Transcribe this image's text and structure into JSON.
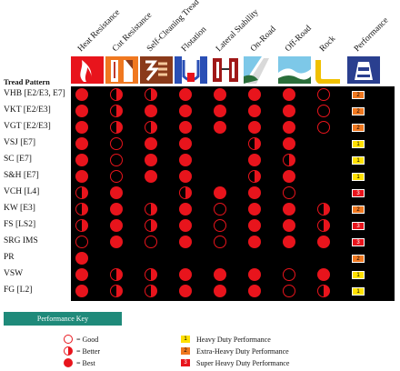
{
  "header": {
    "tread_pattern_label": "Tread Pattern",
    "columns": [
      "Heat Resistance",
      "Cut Resistance",
      "Self-Cleaning Tread",
      "Flotation",
      "Lateral Stability",
      "On-Road",
      "Off-Road",
      "Rock",
      "Performance"
    ]
  },
  "colors": {
    "best": "#e8141c",
    "heavy": "#ffe000",
    "extra_heavy": "#f07820",
    "super_heavy": "#e8141c",
    "key_bar": "#1f8a7a"
  },
  "icons": [
    "heat-icon",
    "cut-icon",
    "self-cleaning-icon",
    "flotation-icon",
    "lateral-stability-icon",
    "on-road-icon",
    "off-road-icon",
    "rock-icon",
    "performance-icon"
  ],
  "rows": [
    {
      "label": "VHB [E2/E3, E7]",
      "ratings": [
        "best",
        "better",
        "better",
        "best",
        "best",
        "best",
        "best",
        "good"
      ],
      "perf": "2"
    },
    {
      "label": "VKT [E2/E3]",
      "ratings": [
        "best",
        "better",
        "best",
        "best",
        "best",
        "best",
        "best",
        "good"
      ],
      "perf": "2"
    },
    {
      "label": "VGT [E2/E3]",
      "ratings": [
        "best",
        "better",
        "better",
        "best",
        "best",
        "best",
        "best",
        "good"
      ],
      "perf": "2"
    },
    {
      "label": "VSJ [E7]",
      "ratings": [
        "best",
        "good",
        "best",
        "best",
        "",
        "better",
        "best",
        ""
      ],
      "perf": "1"
    },
    {
      "label": "SC [E7]",
      "ratings": [
        "best",
        "good",
        "best",
        "best",
        "",
        "best",
        "better",
        ""
      ],
      "perf": "1"
    },
    {
      "label": "S&H [E7]",
      "ratings": [
        "best",
        "good",
        "best",
        "best",
        "",
        "better",
        "best",
        ""
      ],
      "perf": "1"
    },
    {
      "label": "VCH [L4]",
      "ratings": [
        "better",
        "best",
        "",
        "better",
        "best",
        "best",
        "good",
        ""
      ],
      "perf": "3"
    },
    {
      "label": "KW [E3]",
      "ratings": [
        "better",
        "best",
        "better",
        "best",
        "good",
        "best",
        "best",
        "better"
      ],
      "perf": "2"
    },
    {
      "label": "FS [LS2]",
      "ratings": [
        "better",
        "best",
        "better",
        "best",
        "good",
        "best",
        "best",
        "better"
      ],
      "perf": "3"
    },
    {
      "label": "SRG IMS",
      "ratings": [
        "good",
        "best",
        "good",
        "best",
        "good",
        "best",
        "best",
        "best"
      ],
      "perf": "3"
    },
    {
      "label": "PR",
      "ratings": [
        "best",
        "",
        "",
        "",
        "",
        "",
        "",
        ""
      ],
      "perf": "2"
    },
    {
      "label": "VSW",
      "ratings": [
        "best",
        "better",
        "better",
        "best",
        "best",
        "best",
        "good",
        "best"
      ],
      "perf": "1"
    },
    {
      "label": "FG [L2]",
      "ratings": [
        "best",
        "better",
        "better",
        "best",
        "best",
        "best",
        "good",
        "better"
      ],
      "perf": "1"
    }
  ],
  "key": {
    "title": "Performance Key",
    "good": "= Good",
    "better": "= Better",
    "best": "= Best",
    "p1_num": "1",
    "p1": "Heavy Duty Performance",
    "p2_num": "2",
    "p2": "Extra-Heavy Duty Performance",
    "p3_num": "3",
    "p3": "Super Heavy Duty Performance"
  }
}
